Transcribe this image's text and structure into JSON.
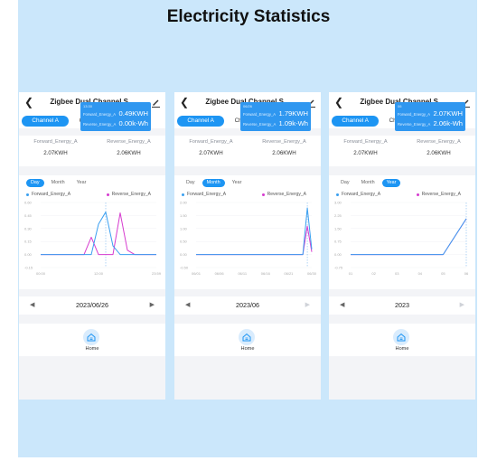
{
  "page": {
    "title": "Electricity Statistics"
  },
  "colors": {
    "accent": "#1d95f3",
    "forward": "#3a9ff0",
    "reverse": "#d63ccf",
    "banner": "#cbe7fb"
  },
  "screens": [
    {
      "header": {
        "title": "Zigbee Dual Channel S..."
      },
      "tabs": [
        "Channel A",
        "Channel B",
        "Total"
      ],
      "energy": {
        "forward_label": "Forward_Energy_A",
        "forward_value": "2.07KWH",
        "reverse_label": "Reverse_Energy_A",
        "reverse_value": "2.06KWH"
      },
      "period_tabs": [
        "Day",
        "Month",
        "Year"
      ],
      "active_period": "Day",
      "legend": {
        "forward": "Forward_Energy_A",
        "reverse": "Reverse_Energy_A"
      },
      "tooltip": {
        "time": "13:30",
        "forward_label": "Forward_Energy_A",
        "forward_value": "0.49KWH",
        "reverse_label": "Reverse_Energy_A",
        "reverse_value": "0.00k-Wh"
      },
      "y_ticks": [
        "0.60",
        "0.45",
        "0.30",
        "0.15",
        "0.00",
        "-0.15"
      ],
      "x_ticks": [
        "00:00",
        "12:00",
        "23:59"
      ],
      "date": "2023/06/26",
      "next_enabled": true,
      "home_label": "Home"
    },
    {
      "header": {
        "title": "Zigbee Dual Channel S..."
      },
      "tabs": [
        "Channel A",
        "Channel B",
        "Total"
      ],
      "energy": {
        "forward_label": "Forward_Energy_A",
        "forward_value": "2.07KWH",
        "reverse_label": "Reverse_Energy_A",
        "reverse_value": "2.06KWH"
      },
      "period_tabs": [
        "Day",
        "Month",
        "Year"
      ],
      "active_period": "Month",
      "legend": {
        "forward": "Forward_Energy_A",
        "reverse": "Reverse_Energy_A"
      },
      "tooltip": {
        "time": "06/26",
        "forward_label": "Forward_Energy_A",
        "forward_value": "1.79KWH",
        "reverse_label": "Reverse_Energy_A",
        "reverse_value": "1.09k-Wh"
      },
      "y_ticks": [
        "2.00",
        "1.50",
        "1.00",
        "0.50",
        "0.00",
        "-0.50"
      ],
      "x_ticks": [
        "06/01",
        "06/06",
        "06/11",
        "06/16",
        "06/21",
        "06/30"
      ],
      "date": "2023/06",
      "next_enabled": false,
      "home_label": "Home"
    },
    {
      "header": {
        "title": "Zigbee Dual Channel S..."
      },
      "tabs": [
        "Channel A",
        "Channel B",
        "Total"
      ],
      "energy": {
        "forward_label": "Forward_Energy_A",
        "forward_value": "2.07KWH",
        "reverse_label": "Reverse_Energy_A",
        "reverse_value": "2.06KWH"
      },
      "period_tabs": [
        "Day",
        "Month",
        "Year"
      ],
      "active_period": "Year",
      "legend": {
        "forward": "Forward_Energy_A",
        "reverse": "Reverse_Energy_A"
      },
      "tooltip": {
        "time": "06",
        "forward_label": "Forward_Energy_A",
        "forward_value": "2.07KWH",
        "reverse_label": "Reverse_Energy_A",
        "reverse_value": "2.06k-Wh"
      },
      "y_ticks": [
        "3.00",
        "2.25",
        "1.50",
        "0.75",
        "0.00",
        "-0.75"
      ],
      "x_ticks": [
        "01",
        "02",
        "03",
        "04",
        "05",
        "06"
      ],
      "date": "2023",
      "next_enabled": false,
      "home_label": "Home"
    }
  ],
  "chart_data": [
    {
      "type": "line",
      "x_label_ticks": [
        "00:00",
        "12:00",
        "23:59"
      ],
      "ylim": [
        -0.15,
        0.6
      ],
      "marker_index": 9,
      "series": [
        {
          "name": "Forward_Energy_A",
          "values": [
            0,
            0,
            0,
            0,
            0,
            0,
            0,
            0,
            0.35,
            0.49,
            0.1,
            0,
            0,
            0,
            0,
            0,
            0
          ]
        },
        {
          "name": "Reverse_Energy_A",
          "values": [
            0,
            0,
            0,
            0,
            0,
            0,
            0,
            0.2,
            0,
            0,
            0,
            0.48,
            0.05,
            0,
            0,
            0,
            0
          ]
        }
      ]
    },
    {
      "type": "line",
      "x_label_ticks": [
        "06/01",
        "06/06",
        "06/11",
        "06/16",
        "06/21",
        "06/30"
      ],
      "ylim": [
        -0.5,
        2.0
      ],
      "marker_index": 25,
      "series": [
        {
          "name": "Forward_Energy_A",
          "values": [
            0,
            0,
            0,
            0,
            0,
            0,
            0,
            0,
            0,
            0,
            0,
            0,
            0,
            0,
            0,
            0,
            0,
            0,
            0,
            0,
            0,
            0,
            0,
            0,
            0,
            1.79,
            0.2
          ]
        },
        {
          "name": "Reverse_Energy_A",
          "values": [
            0,
            0,
            0,
            0,
            0,
            0,
            0,
            0,
            0,
            0,
            0,
            0,
            0,
            0,
            0,
            0,
            0,
            0,
            0,
            0,
            0,
            0,
            0,
            0,
            0,
            1.09,
            0.1
          ]
        }
      ]
    },
    {
      "type": "line",
      "x_label_ticks": [
        "01",
        "02",
        "03",
        "04",
        "05",
        "06"
      ],
      "ylim": [
        -0.75,
        3.0
      ],
      "marker_index": 5,
      "series": [
        {
          "name": "Forward_Energy_A",
          "values": [
            0,
            0,
            0,
            0,
            0,
            2.07
          ]
        },
        {
          "name": "Reverse_Energy_A",
          "values": [
            0,
            0,
            0,
            0,
            0,
            2.06
          ]
        }
      ]
    }
  ]
}
